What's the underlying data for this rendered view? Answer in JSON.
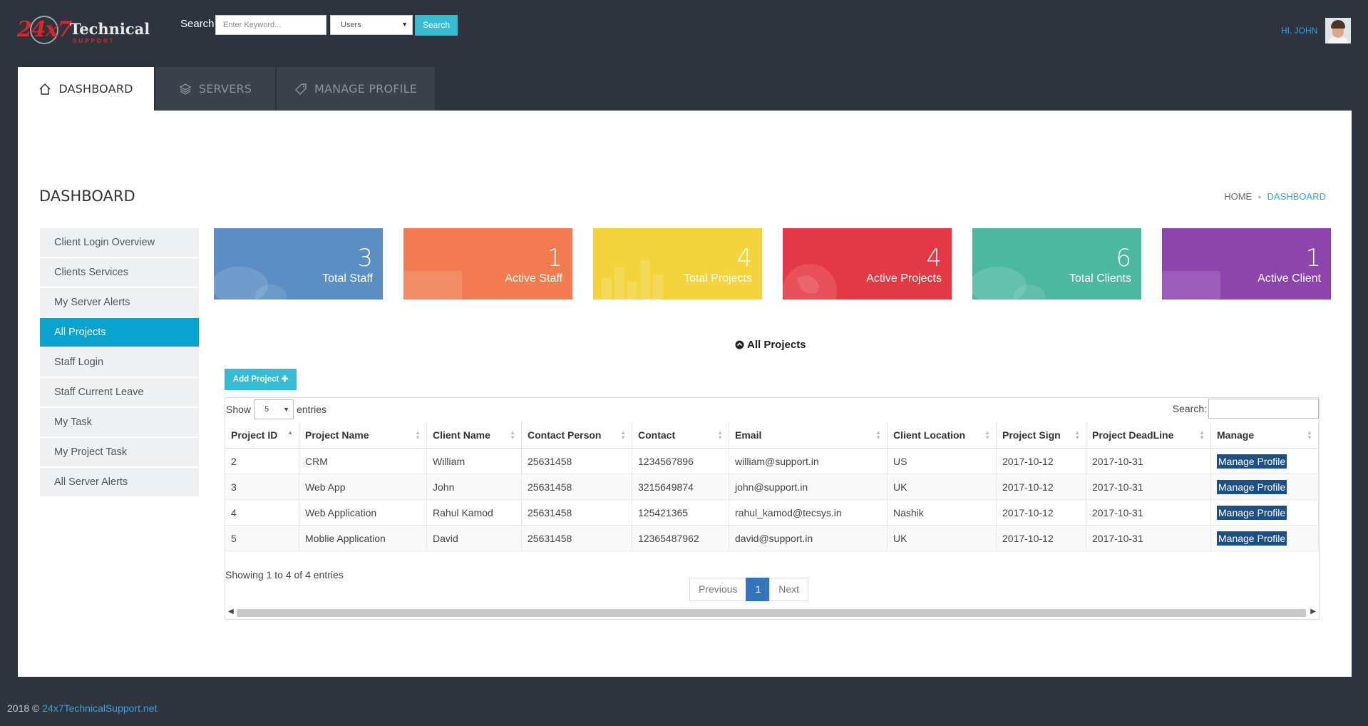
{
  "header": {
    "logo_number": "24x7",
    "logo_word": "Technical",
    "logo_sub": "SUPPORT",
    "search_label": "Search",
    "search_placeholder": "Enter Keyword...",
    "search_filter": "Users",
    "search_button": "Search",
    "greeting": "HI, JOHN"
  },
  "tabs": [
    {
      "label": "DASHBOARD",
      "icon": "home-icon",
      "active": true
    },
    {
      "label": "SERVERS",
      "icon": "layers-icon",
      "active": false
    },
    {
      "label": "MANAGE PROFILE",
      "icon": "tag-icon",
      "active": false
    }
  ],
  "page": {
    "title": "DASHBOARD",
    "breadcrumb": [
      "HOME",
      "DASHBOARD"
    ]
  },
  "sidebar": {
    "items": [
      {
        "label": "Client Login Overview",
        "active": false
      },
      {
        "label": "Clients Services",
        "active": false
      },
      {
        "label": "My Server Alerts",
        "active": false
      },
      {
        "label": "All Projects",
        "active": true
      },
      {
        "label": "Staff Login",
        "active": false
      },
      {
        "label": "Staff Current Leave",
        "active": false
      },
      {
        "label": "My Task",
        "active": false
      },
      {
        "label": "My Project Task",
        "active": false
      },
      {
        "label": "All Server Alerts",
        "active": false
      }
    ]
  },
  "cards": [
    {
      "value": "3",
      "label": "Total Staff",
      "color": "#5b8ec4",
      "icon": "chat-bubble-icon"
    },
    {
      "value": "1",
      "label": "Active Staff",
      "color": "#f27b50",
      "icon": "folder-icon"
    },
    {
      "value": "4",
      "label": "Total Projects",
      "color": "#f4d33d",
      "icon": "bar-chart-icon"
    },
    {
      "value": "4",
      "label": "Active Projects",
      "color": "#e53845",
      "icon": "globe-icon"
    },
    {
      "value": "6",
      "label": "Total Clients",
      "color": "#4db8a0",
      "icon": "chat-bubble-icon"
    },
    {
      "value": "1",
      "label": "Active Client",
      "color": "#8e44ad",
      "icon": "folder-icon"
    }
  ],
  "projects": {
    "section_title": "All Projects",
    "add_button": "Add Project",
    "show_label": "Show",
    "page_size": "5",
    "entries_label": "entries",
    "search_label": "Search:",
    "columns": [
      "Project ID",
      "Project Name",
      "Client Name",
      "Contact Person",
      "Contact",
      "Email",
      "Client Location",
      "Project Sign",
      "Project DeadLine",
      "Manage"
    ],
    "rows": [
      [
        "2",
        "CRM",
        "William",
        "25631458",
        "1234567896",
        "william@support.in",
        "US",
        "2017-10-12",
        "2017-10-31",
        "Manage Profile"
      ],
      [
        "3",
        "Web App",
        "John",
        "25631458",
        "3215649874",
        "john@support.in",
        "UK",
        "2017-10-12",
        "2017-10-31",
        "Manage Profile"
      ],
      [
        "4",
        "Web Application",
        "Rahul Kamod",
        "25631458",
        "125421365",
        "rahul_kamod@tecsys.in",
        "Nashik",
        "2017-10-12",
        "2017-10-31",
        "Manage Profile"
      ],
      [
        "5",
        "Moblie Application",
        "David",
        "25631458",
        "12365487962",
        "david@support.in",
        "UK",
        "2017-10-12",
        "2017-10-31",
        "Manage Profile"
      ]
    ],
    "info": "Showing 1 to 4 of 4 entries",
    "pagination": {
      "previous": "Previous",
      "current": "1",
      "next": "Next"
    }
  },
  "footer": {
    "text": "2018 © ",
    "link": "24x7TechnicalSupport.net"
  }
}
